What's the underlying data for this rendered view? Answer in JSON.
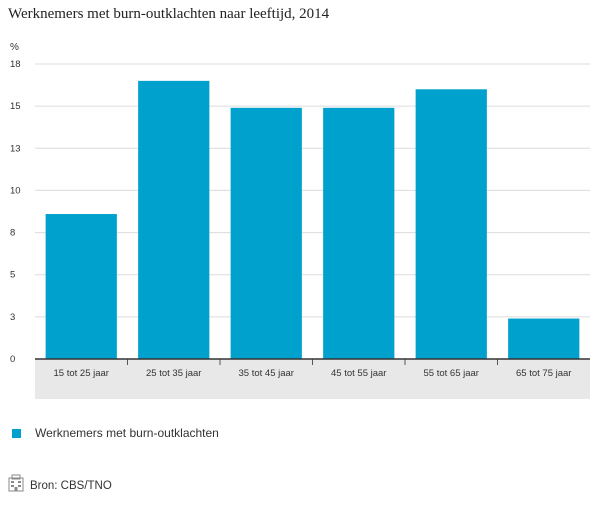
{
  "title": "Werknemers met burn-outklachten naar leeftijd, 2014",
  "source_label": "Bron: CBS/TNO",
  "colors": {
    "bar": "#00a1cd",
    "axis_band": "#e8e8e8",
    "grid": "#dcdcdc"
  },
  "chart_data": {
    "type": "bar",
    "unit": "%",
    "categories": [
      "15 tot 25 jaar",
      "25 tot 35 jaar",
      "35 tot 45 jaar",
      "45 tot 55 jaar",
      "55 tot 65 jaar",
      "65 tot 75 jaar"
    ],
    "series": [
      {
        "name": "Werknemers met burn-outklachten",
        "values": [
          8.6,
          16.5,
          14.9,
          14.9,
          16.0,
          2.4
        ]
      }
    ],
    "ylim": [
      0,
      17.5
    ],
    "yticks": [
      0,
      2.5,
      5,
      7.5,
      10,
      12.5,
      15,
      17.5
    ],
    "ytick_labels": [
      "0",
      "3",
      "5",
      "8",
      "10",
      "13",
      "15",
      "18"
    ],
    "grid": true,
    "legend_position": "bottom-left"
  }
}
